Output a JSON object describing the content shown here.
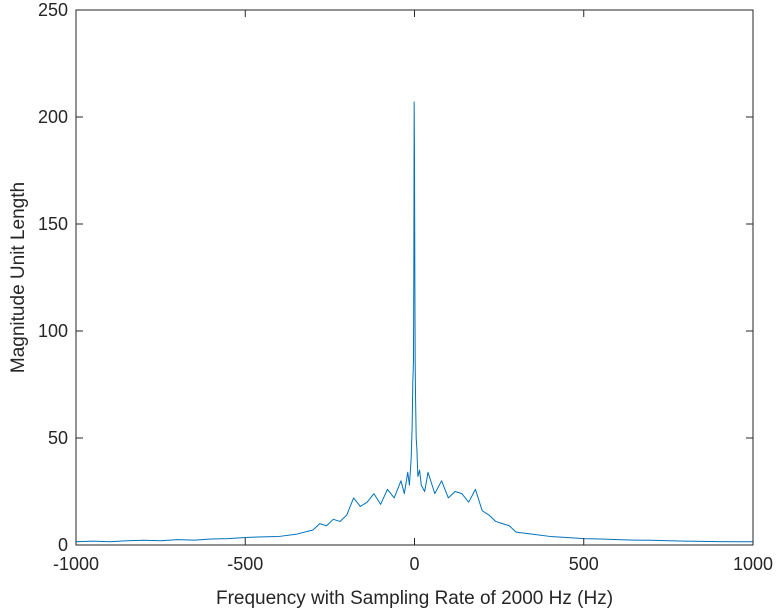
{
  "chart_data": {
    "type": "line",
    "title": "",
    "xlabel": "Frequency with Sampling Rate of 2000 Hz (Hz)",
    "ylabel": "Magnitude Unit Length",
    "xlim": [
      -1000,
      1000
    ],
    "ylim": [
      0,
      250
    ],
    "xticks": [
      -1000,
      -500,
      0,
      500,
      1000
    ],
    "xtick_labels": [
      "-1000",
      "-500",
      "0",
      "500",
      "1000"
    ],
    "yticks": [
      0,
      50,
      100,
      150,
      200,
      250
    ],
    "ytick_labels": [
      "0",
      "50",
      "100",
      "150",
      "200",
      "250"
    ],
    "grid": false,
    "box": true,
    "series": [
      {
        "color": "#0072BD",
        "x": [
          -1000,
          -950,
          -900,
          -850,
          -800,
          -750,
          -700,
          -650,
          -600,
          -550,
          -500,
          -450,
          -400,
          -350,
          -300,
          -280,
          -260,
          -240,
          -220,
          -200,
          -180,
          -160,
          -140,
          -120,
          -100,
          -80,
          -60,
          -40,
          -30,
          -20,
          -15,
          -10,
          -7,
          -5,
          -3,
          -2,
          -1,
          0,
          1,
          2,
          3,
          5,
          7,
          10,
          15,
          20,
          30,
          40,
          60,
          80,
          100,
          120,
          140,
          160,
          180,
          200,
          220,
          240,
          260,
          280,
          300,
          350,
          400,
          450,
          500,
          550,
          600,
          650,
          700,
          750,
          800,
          850,
          900,
          950,
          1000
        ],
        "y": [
          1.5,
          1.8,
          1.5,
          2.0,
          2.2,
          2.0,
          2.5,
          2.3,
          2.8,
          3.0,
          3.5,
          3.8,
          4.0,
          5.0,
          7.0,
          10.0,
          9.0,
          12.0,
          11.0,
          14.0,
          22.0,
          18.0,
          20.0,
          24.0,
          19.0,
          26.0,
          22.0,
          30.0,
          24.0,
          34.0,
          28.0,
          40.0,
          55.0,
          76.0,
          86.0,
          127.0,
          207.0,
          180.0,
          127.0,
          85.0,
          70.0,
          50.0,
          45.0,
          32.0,
          35.0,
          28.0,
          25.0,
          34.0,
          24.0,
          30.0,
          22.0,
          25.0,
          24.0,
          20.0,
          26.0,
          16.0,
          14.0,
          11.0,
          10.0,
          9.0,
          6.0,
          5.0,
          4.0,
          3.5,
          3.0,
          2.8,
          2.5,
          2.3,
          2.2,
          2.0,
          1.8,
          1.7,
          1.6,
          1.5,
          1.5
        ]
      }
    ]
  }
}
